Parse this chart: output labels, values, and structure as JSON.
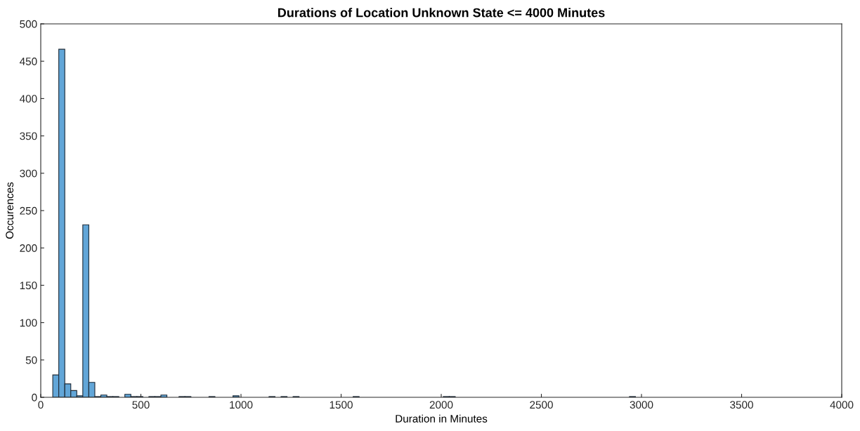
{
  "chart_data": {
    "type": "histogram",
    "title": "Durations of Location Unknown State <= 4000 Minutes",
    "xlabel": "Duration in Minutes",
    "ylabel": "Occurences",
    "color": "#62a6d8",
    "bins": [
      60,
      90,
      120,
      150,
      180,
      210,
      240,
      270,
      300,
      330,
      360,
      390,
      420,
      450,
      480,
      510,
      540,
      570,
      600,
      630,
      660,
      690,
      720,
      750,
      780,
      810,
      840,
      870,
      900,
      930,
      960,
      990,
      1020,
      1050,
      1080,
      1110,
      1140,
      1170,
      1200,
      1230,
      1260,
      1290,
      1320,
      1350,
      1380,
      1410,
      1440,
      1470,
      1500,
      1530,
      1560,
      1590,
      1620,
      1650,
      1680,
      1710,
      1740,
      1770,
      1800,
      1830,
      1860,
      1890,
      1920,
      1950,
      1980,
      2010,
      2040,
      2070,
      2100,
      2130,
      2160,
      2190,
      2220,
      2250,
      2280,
      2310,
      2340,
      2370,
      2400,
      2430,
      2460,
      2490,
      2520,
      2550,
      2580,
      2610,
      2640,
      2670,
      2700,
      2730,
      2760,
      2790,
      2820,
      2850,
      2880,
      2910,
      2940,
      2970
    ],
    "values": [
      30,
      466,
      18,
      9,
      2,
      231,
      20,
      1,
      3,
      1,
      1,
      0,
      4,
      1,
      1,
      0,
      1,
      1,
      3,
      0,
      0,
      1,
      1,
      0,
      0,
      0,
      1,
      0,
      0,
      0,
      2,
      0,
      0,
      0,
      0,
      0,
      1,
      0,
      1,
      0,
      1,
      0,
      0,
      0,
      0,
      0,
      0,
      0,
      0,
      0,
      1,
      0,
      0,
      0,
      0,
      0,
      0,
      0,
      0,
      0,
      0,
      0,
      0,
      0,
      0,
      1,
      1,
      0,
      0,
      0,
      0,
      0,
      0,
      0,
      0,
      0,
      0,
      0,
      0,
      0,
      0,
      0,
      0,
      0,
      0,
      0,
      0,
      0,
      0,
      0,
      0,
      0,
      0,
      0,
      0,
      0,
      1
    ],
    "xlim": [
      0,
      4000
    ],
    "xticks": [
      0,
      500,
      1000,
      1500,
      2000,
      2500,
      3000,
      3500,
      4000
    ],
    "ylim": [
      0,
      500
    ],
    "yticks": [
      0,
      50,
      100,
      150,
      200,
      250,
      300,
      350,
      400,
      450,
      500
    ],
    "grid": false
  }
}
